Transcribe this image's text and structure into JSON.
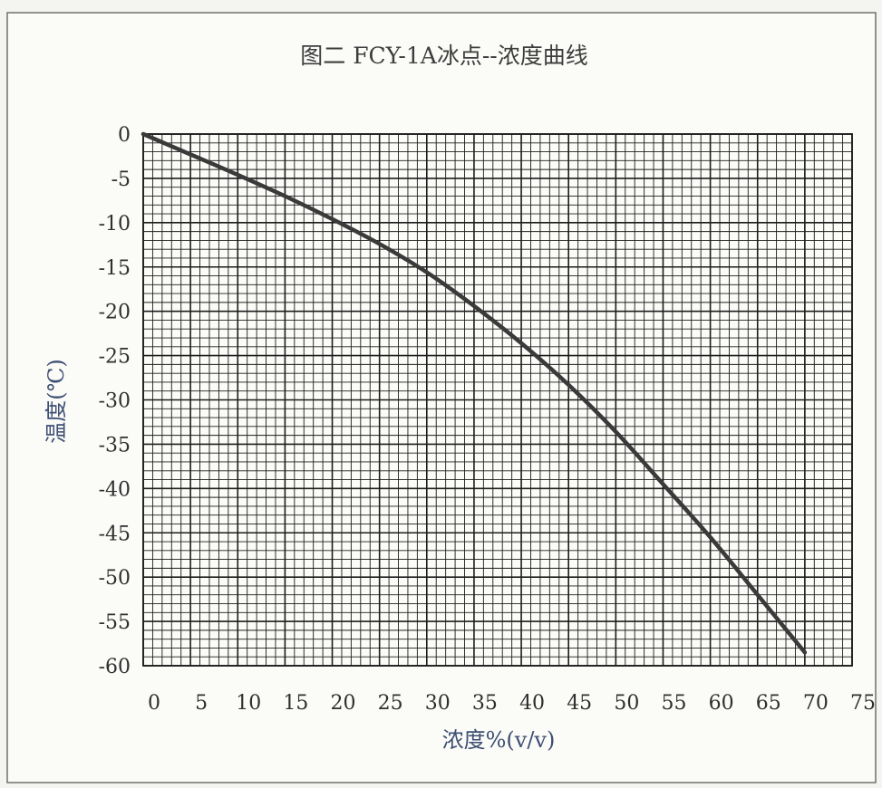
{
  "chart_data": {
    "type": "line",
    "title": "图二 FCY-1A冰点--浓度曲线",
    "xlabel": "浓度%(v/v)",
    "ylabel": "温度(℃)",
    "xlim": [
      0,
      75
    ],
    "ylim": [
      -60,
      0
    ],
    "x_ticks": [
      "0",
      "5",
      "10",
      "15",
      "20",
      "25",
      "30",
      "35",
      "40",
      "45",
      "50",
      "55",
      "60",
      "65",
      "70",
      "75"
    ],
    "y_ticks": [
      "0",
      "-5",
      "-10",
      "-15",
      "-20",
      "-25",
      "-30",
      "-35",
      "-40",
      "-45",
      "-50",
      "-55",
      "-60"
    ],
    "grid": true,
    "legend": "none",
    "series": [
      {
        "x": [
          0,
          5,
          10,
          15,
          20,
          25,
          30,
          35,
          40,
          45,
          50,
          55,
          60,
          65,
          70
        ],
        "y": [
          0,
          -2.3,
          -4.6,
          -7,
          -9.6,
          -12.4,
          -15.6,
          -19.4,
          -23.6,
          -28.3,
          -33.6,
          -39.5,
          -45.5,
          -52,
          -58.5
        ]
      }
    ],
    "line_color": "#3a3a3a"
  }
}
